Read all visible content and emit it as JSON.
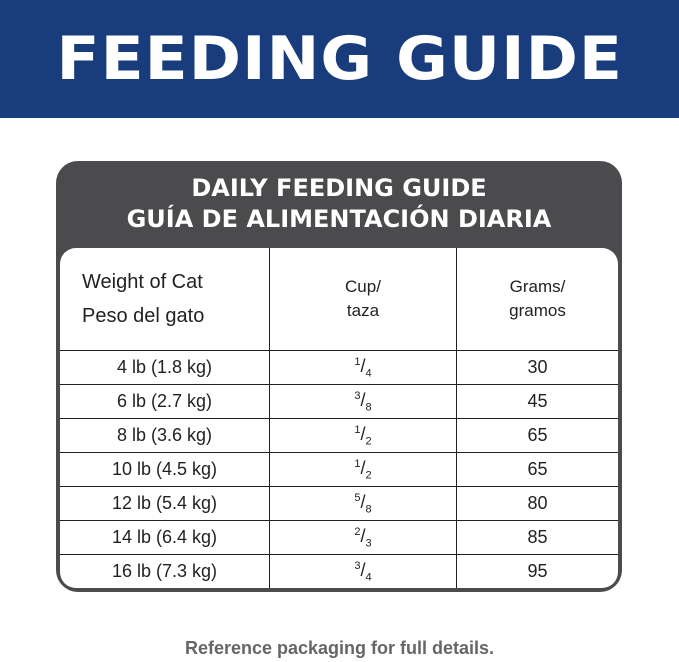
{
  "banner": {
    "title": "FEEDING GUIDE",
    "color": "#193d7c"
  },
  "table": {
    "title_en": "DAILY FEEDING GUIDE",
    "title_es": "GUÍA DE ALIMENTACIÓN DIARIA",
    "headers": [
      {
        "line1": "Weight of Cat",
        "line2": "Peso del gato"
      },
      {
        "line1": "Cup/",
        "line2": "taza"
      },
      {
        "line1": "Grams/",
        "line2": "gramos"
      }
    ],
    "rows": [
      {
        "weight": "4 lb (1.8 kg)",
        "cup_num": "1",
        "cup_den": "4",
        "grams": "30"
      },
      {
        "weight": "6 lb (2.7 kg)",
        "cup_num": "3",
        "cup_den": "8",
        "grams": "45"
      },
      {
        "weight": "8 lb (3.6 kg)",
        "cup_num": "1",
        "cup_den": "2",
        "grams": "65"
      },
      {
        "weight": "10 lb (4.5 kg)",
        "cup_num": "1",
        "cup_den": "2",
        "grams": "65"
      },
      {
        "weight": "12 lb (5.4 kg)",
        "cup_num": "5",
        "cup_den": "8",
        "grams": "80"
      },
      {
        "weight": "14 lb (6.4 kg)",
        "cup_num": "2",
        "cup_den": "3",
        "grams": "85"
      },
      {
        "weight": "16 lb (7.3 kg)",
        "cup_num": "3",
        "cup_den": "4",
        "grams": "95"
      }
    ]
  },
  "footer": "Reference packaging for full details."
}
